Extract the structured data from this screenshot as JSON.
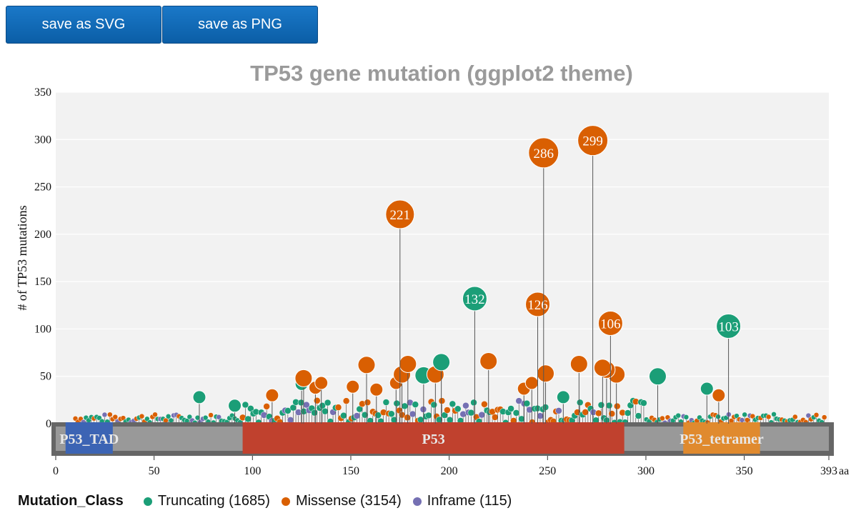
{
  "toolbar": {
    "save_svg_label": "save as SVG",
    "save_png_label": "save as PNG"
  },
  "chart_data": {
    "type": "lollipop",
    "title": "TP53 gene mutation (ggplot2 theme)",
    "ylabel": "# of TP53 mutations",
    "x_unit": "aa",
    "xlim": [
      0,
      393
    ],
    "ylim": [
      0,
      350
    ],
    "x_ticks": [
      0,
      50,
      100,
      150,
      200,
      250,
      300,
      350,
      393
    ],
    "y_ticks": [
      0,
      50,
      100,
      150,
      200,
      250,
      300,
      350
    ],
    "colors": {
      "Truncating": "#1b9e77",
      "Missense": "#d95f02",
      "Inframe": "#7570b3"
    },
    "domains": [
      {
        "name": "P53_TAD",
        "start": 5,
        "end": 29,
        "color": "#3c64b4"
      },
      {
        "name": "P53",
        "start": 95,
        "end": 289,
        "color": "#c0412e"
      },
      {
        "name": "P53_tetramer",
        "start": 319,
        "end": 358,
        "color": "#e08a2e"
      }
    ],
    "mutations": [
      {
        "pos": 175,
        "count": 221,
        "class": "Missense",
        "label": "221"
      },
      {
        "pos": 213,
        "count": 132,
        "class": "Truncating",
        "label": "132"
      },
      {
        "pos": 245,
        "count": 126,
        "class": "Missense",
        "label": "126"
      },
      {
        "pos": 248,
        "count": 286,
        "class": "Missense",
        "label": "286"
      },
      {
        "pos": 273,
        "count": 299,
        "class": "Missense",
        "label": "299"
      },
      {
        "pos": 282,
        "count": 106,
        "class": "Missense",
        "label": "106"
      },
      {
        "pos": 342,
        "count": 103,
        "class": "Truncating",
        "label": "103"
      },
      {
        "pos": 73,
        "count": 28,
        "class": "Truncating"
      },
      {
        "pos": 91,
        "count": 19,
        "class": "Truncating"
      },
      {
        "pos": 110,
        "count": 30,
        "class": "Missense"
      },
      {
        "pos": 125,
        "count": 42,
        "class": "Truncating"
      },
      {
        "pos": 126,
        "count": 48,
        "class": "Missense"
      },
      {
        "pos": 132,
        "count": 38,
        "class": "Missense"
      },
      {
        "pos": 135,
        "count": 43,
        "class": "Missense"
      },
      {
        "pos": 151,
        "count": 39,
        "class": "Missense"
      },
      {
        "pos": 158,
        "count": 62,
        "class": "Missense"
      },
      {
        "pos": 163,
        "count": 36,
        "class": "Missense"
      },
      {
        "pos": 173,
        "count": 43,
        "class": "Missense"
      },
      {
        "pos": 176,
        "count": 52,
        "class": "Missense"
      },
      {
        "pos": 179,
        "count": 63,
        "class": "Missense"
      },
      {
        "pos": 187,
        "count": 51,
        "class": "Truncating"
      },
      {
        "pos": 193,
        "count": 52,
        "class": "Missense"
      },
      {
        "pos": 196,
        "count": 65,
        "class": "Truncating"
      },
      {
        "pos": 220,
        "count": 66,
        "class": "Missense"
      },
      {
        "pos": 238,
        "count": 37,
        "class": "Missense"
      },
      {
        "pos": 242,
        "count": 43,
        "class": "Missense"
      },
      {
        "pos": 249,
        "count": 53,
        "class": "Missense"
      },
      {
        "pos": 258,
        "count": 28,
        "class": "Truncating"
      },
      {
        "pos": 266,
        "count": 63,
        "class": "Missense"
      },
      {
        "pos": 278,
        "count": 59,
        "class": "Missense"
      },
      {
        "pos": 280,
        "count": 57,
        "class": "Missense"
      },
      {
        "pos": 285,
        "count": 52,
        "class": "Missense"
      },
      {
        "pos": 306,
        "count": 50,
        "class": "Truncating"
      },
      {
        "pos": 331,
        "count": 37,
        "class": "Truncating"
      },
      {
        "pos": 337,
        "count": 30,
        "class": "Missense"
      }
    ],
    "legend": {
      "title": "Mutation_Class",
      "items": [
        {
          "label": "Truncating (1685)",
          "color": "#1b9e77"
        },
        {
          "label": "Missense (3154)",
          "color": "#d95f02"
        },
        {
          "label": "Inframe (115)",
          "color": "#7570b3"
        }
      ]
    }
  }
}
